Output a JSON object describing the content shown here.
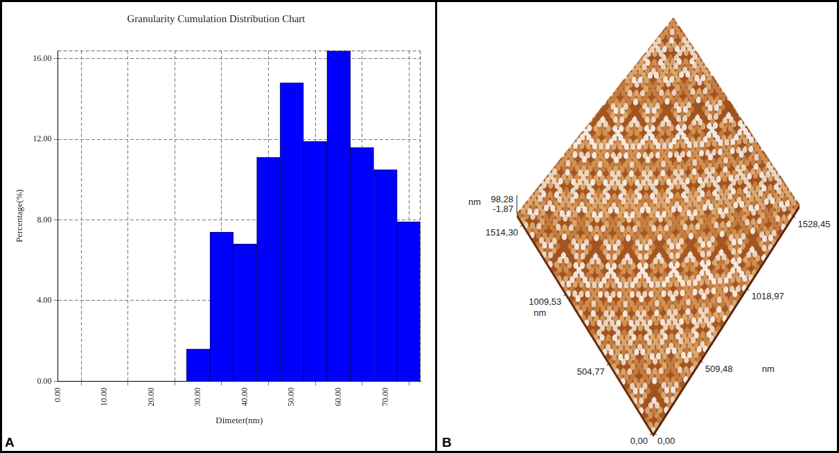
{
  "chart_data": {
    "type": "histogram",
    "title": "Granularity Cumulation Distribution Chart",
    "x_label": "Dimeter(nm)",
    "y_label": "Percentage(%)",
    "bins": [
      27.5,
      32.5,
      37.5,
      42.5,
      47.5,
      52.5,
      57.5,
      62.5,
      67.5,
      72.5,
      77.5
    ],
    "values": [
      1.6,
      7.4,
      6.8,
      11.1,
      14.8,
      11.9,
      16.4,
      11.6,
      10.5,
      7.9
    ],
    "color": "#0000ff",
    "xlim": [
      0,
      77.5
    ],
    "xticks": [
      {
        "value": 0,
        "label": "0.00"
      },
      {
        "value": 10,
        "label": "10.00"
      },
      {
        "value": 20,
        "label": "20.00"
      },
      {
        "value": 30,
        "label": "30.00"
      },
      {
        "value": 40,
        "label": "40.00"
      },
      {
        "value": 50,
        "label": "50.00"
      },
      {
        "value": 60,
        "label": "60.00"
      },
      {
        "value": 70,
        "label": "70.00"
      }
    ],
    "ylim": [
      0,
      16.4
    ],
    "yticks": [
      {
        "value": 0,
        "label": "0.00"
      },
      {
        "value": 4,
        "label": "4.00"
      },
      {
        "value": 8,
        "label": "8.00"
      },
      {
        "value": 12,
        "label": "12.00"
      },
      {
        "value": 16,
        "label": "16.00"
      }
    ],
    "grid": true
  },
  "panel_labels": [
    "A",
    "B"
  ],
  "surface_image": {
    "z_unit": "nm",
    "z_range": [
      {
        "value": -1.87,
        "label": "-1,87"
      },
      {
        "value": 98.28,
        "label": "98,28"
      }
    ],
    "left_axis_unit": "nm",
    "left_axis_ticks": [
      {
        "value": 0,
        "label": "0,00"
      },
      {
        "value": 504.77,
        "label": "504,77"
      },
      {
        "value": 1009.53,
        "label": "1009,53"
      },
      {
        "value": 1514.3,
        "label": "1514,30"
      }
    ],
    "right_axis_unit": "nm",
    "right_axis_ticks": [
      {
        "value": 0,
        "label": "0,00"
      },
      {
        "value": 509.48,
        "label": "509,48"
      },
      {
        "value": 1018.97,
        "label": "1018,97"
      },
      {
        "value": 1528.45,
        "label": "1528,45"
      }
    ]
  }
}
